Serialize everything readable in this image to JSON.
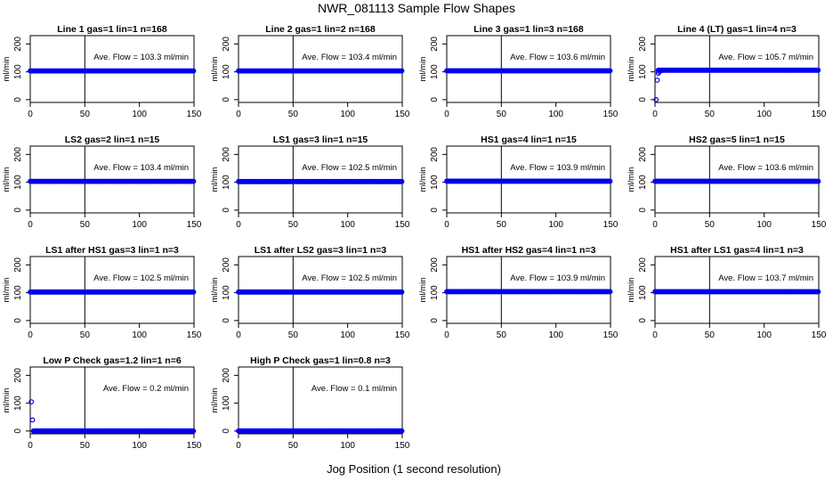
{
  "title": "NWR_081113  Sample Flow Shapes",
  "xlabel": "Jog Position (1 second resolution)",
  "colors": {
    "points": "#0000ee",
    "axes": "#000000"
  },
  "chart_data": [
    {
      "type": "scatter",
      "title": "Line 1 gas=1 lin=1 n=168",
      "ylabel": "ml/min",
      "annotation": "Ave. Flow = 103.3  ml/min",
      "xlim": [
        0,
        150
      ],
      "ylim": [
        -10,
        230
      ],
      "xticks": [
        0,
        50,
        100,
        150
      ],
      "yticks": [
        0,
        100,
        200
      ],
      "vline_x": 50,
      "hline_y": 103.3,
      "mean": 103.3,
      "lead_points": []
    },
    {
      "type": "scatter",
      "title": "Line 2 gas=1 lin=2 n=168",
      "ylabel": "ml/min",
      "annotation": "Ave. Flow = 103.4  ml/min",
      "xlim": [
        0,
        150
      ],
      "ylim": [
        -10,
        230
      ],
      "xticks": [
        0,
        50,
        100,
        150
      ],
      "yticks": [
        0,
        100,
        200
      ],
      "vline_x": 50,
      "hline_y": 103.4,
      "mean": 103.4,
      "lead_points": []
    },
    {
      "type": "scatter",
      "title": "Line 3 gas=1 lin=3 n=168",
      "ylabel": "ml/min",
      "annotation": "Ave. Flow = 103.6  ml/min",
      "xlim": [
        0,
        150
      ],
      "ylim": [
        -10,
        230
      ],
      "xticks": [
        0,
        50,
        100,
        150
      ],
      "yticks": [
        0,
        100,
        200
      ],
      "vline_x": 50,
      "hline_y": 103.6,
      "mean": 103.6,
      "lead_points": []
    },
    {
      "type": "scatter",
      "title": "Line 4 (LT) gas=1 lin=4 n=3",
      "ylabel": "ml/min",
      "annotation": "Ave. Flow = 105.7  ml/min",
      "xlim": [
        0,
        150
      ],
      "ylim": [
        -10,
        230
      ],
      "xticks": [
        0,
        50,
        100,
        150
      ],
      "yticks": [
        0,
        100,
        200
      ],
      "vline_x": 50,
      "hline_y": 105.7,
      "mean": 105.7,
      "lead_points": [
        [
          1,
          0
        ],
        [
          2,
          70
        ],
        [
          3,
          95
        ],
        [
          4,
          100
        ],
        [
          6,
          105
        ]
      ]
    },
    {
      "type": "scatter",
      "title": "LS2 gas=2 lin=1 n=15",
      "ylabel": "ml/min",
      "annotation": "Ave. Flow = 103.4  ml/min",
      "xlim": [
        0,
        150
      ],
      "ylim": [
        -10,
        230
      ],
      "xticks": [
        0,
        50,
        100,
        150
      ],
      "yticks": [
        0,
        100,
        200
      ],
      "vline_x": 50,
      "hline_y": 103.4,
      "mean": 103.4,
      "lead_points": []
    },
    {
      "type": "scatter",
      "title": "LS1 gas=3 lin=1 n=15",
      "ylabel": "ml/min",
      "annotation": "Ave. Flow = 102.5  ml/min",
      "xlim": [
        0,
        150
      ],
      "ylim": [
        -10,
        230
      ],
      "xticks": [
        0,
        50,
        100,
        150
      ],
      "yticks": [
        0,
        100,
        200
      ],
      "vline_x": 50,
      "hline_y": 102.5,
      "mean": 102.5,
      "lead_points": []
    },
    {
      "type": "scatter",
      "title": "HS1 gas=4 lin=1 n=15",
      "ylabel": "ml/min",
      "annotation": "Ave. Flow = 103.9  ml/min",
      "xlim": [
        0,
        150
      ],
      "ylim": [
        -10,
        230
      ],
      "xticks": [
        0,
        50,
        100,
        150
      ],
      "yticks": [
        0,
        100,
        200
      ],
      "vline_x": 50,
      "hline_y": 103.9,
      "mean": 103.9,
      "lead_points": []
    },
    {
      "type": "scatter",
      "title": "HS2 gas=5 lin=1 n=15",
      "ylabel": "ml/min",
      "annotation": "Ave. Flow = 103.6  ml/min",
      "xlim": [
        0,
        150
      ],
      "ylim": [
        -10,
        230
      ],
      "xticks": [
        0,
        50,
        100,
        150
      ],
      "yticks": [
        0,
        100,
        200
      ],
      "vline_x": 50,
      "hline_y": 103.6,
      "mean": 103.6,
      "lead_points": []
    },
    {
      "type": "scatter",
      "title": "LS1 after HS1 gas=3 lin=1 n=3",
      "ylabel": "ml/min",
      "annotation": "Ave. Flow = 102.5  ml/min",
      "xlim": [
        0,
        150
      ],
      "ylim": [
        -10,
        230
      ],
      "xticks": [
        0,
        50,
        100,
        150
      ],
      "yticks": [
        0,
        100,
        200
      ],
      "vline_x": 50,
      "hline_y": 102.5,
      "mean": 102.5,
      "lead_points": []
    },
    {
      "type": "scatter",
      "title": "LS1 after LS2 gas=3 lin=1 n=3",
      "ylabel": "ml/min",
      "annotation": "Ave. Flow = 102.5  ml/min",
      "xlim": [
        0,
        150
      ],
      "ylim": [
        -10,
        230
      ],
      "xticks": [
        0,
        50,
        100,
        150
      ],
      "yticks": [
        0,
        100,
        200
      ],
      "vline_x": 50,
      "hline_y": 102.5,
      "mean": 102.5,
      "lead_points": []
    },
    {
      "type": "scatter",
      "title": "HS1 after HS2 gas=4 lin=1 n=3",
      "ylabel": "ml/min",
      "annotation": "Ave. Flow = 103.9  ml/min",
      "xlim": [
        0,
        150
      ],
      "ylim": [
        -10,
        230
      ],
      "xticks": [
        0,
        50,
        100,
        150
      ],
      "yticks": [
        0,
        100,
        200
      ],
      "vline_x": 50,
      "hline_y": 103.9,
      "mean": 103.9,
      "lead_points": []
    },
    {
      "type": "scatter",
      "title": "HS1 after LS1 gas=4 lin=1 n=3",
      "ylabel": "ml/min",
      "annotation": "Ave. Flow = 103.7  ml/min",
      "xlim": [
        0,
        150
      ],
      "ylim": [
        -10,
        230
      ],
      "xticks": [
        0,
        50,
        100,
        150
      ],
      "yticks": [
        0,
        100,
        200
      ],
      "vline_x": 50,
      "hline_y": 103.7,
      "mean": 103.7,
      "lead_points": []
    },
    {
      "type": "scatter",
      "title": "Low P Check gas=1.2 lin=1 n=6",
      "ylabel": "ml/min",
      "annotation": "Ave. Flow = 0.2  ml/min",
      "xlim": [
        0,
        150
      ],
      "ylim": [
        -10,
        230
      ],
      "xticks": [
        0,
        50,
        100,
        150
      ],
      "yticks": [
        0,
        100,
        200
      ],
      "vline_x": 50,
      "hline_y": 0.2,
      "mean": 0.2,
      "lead_points": [
        [
          1,
          105
        ],
        [
          2,
          40
        ]
      ]
    },
    {
      "type": "scatter",
      "title": "High P Check gas=1 lin=0.8 n=3",
      "ylabel": "ml/min",
      "annotation": "Ave. Flow = 0.1  ml/min",
      "xlim": [
        0,
        150
      ],
      "ylim": [
        -10,
        230
      ],
      "xticks": [
        0,
        50,
        100,
        150
      ],
      "yticks": [
        0,
        100,
        200
      ],
      "vline_x": 50,
      "hline_y": 0.1,
      "mean": 0.1,
      "lead_points": []
    }
  ]
}
